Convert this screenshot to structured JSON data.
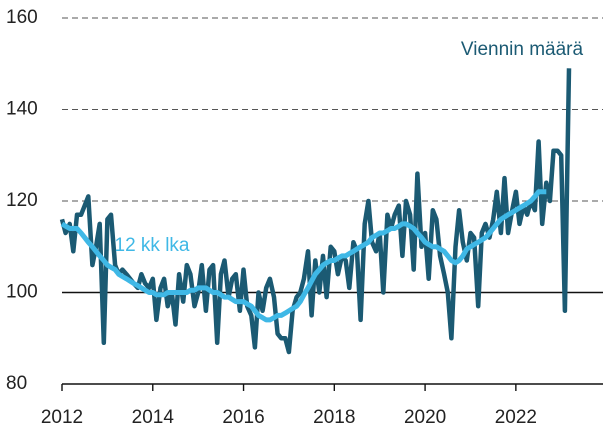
{
  "chart_data": {
    "type": "line",
    "x": [
      2012.0,
      2012.08,
      2012.17,
      2012.25,
      2012.33,
      2012.42,
      2012.5,
      2012.58,
      2012.67,
      2012.75,
      2012.83,
      2012.92,
      2013.0,
      2013.08,
      2013.17,
      2013.25,
      2013.33,
      2013.42,
      2013.5,
      2013.58,
      2013.67,
      2013.75,
      2013.83,
      2013.92,
      2014.0,
      2014.08,
      2014.17,
      2014.25,
      2014.33,
      2014.42,
      2014.5,
      2014.58,
      2014.67,
      2014.75,
      2014.83,
      2014.92,
      2015.0,
      2015.08,
      2015.17,
      2015.25,
      2015.33,
      2015.42,
      2015.5,
      2015.58,
      2015.67,
      2015.75,
      2015.83,
      2015.92,
      2016.0,
      2016.08,
      2016.17,
      2016.25,
      2016.33,
      2016.42,
      2016.5,
      2016.58,
      2016.67,
      2016.75,
      2016.83,
      2016.92,
      2017.0,
      2017.08,
      2017.17,
      2017.25,
      2017.33,
      2017.42,
      2017.5,
      2017.58,
      2017.67,
      2017.75,
      2017.83,
      2017.92,
      2018.0,
      2018.08,
      2018.17,
      2018.25,
      2018.33,
      2018.42,
      2018.5,
      2018.58,
      2018.67,
      2018.75,
      2018.83,
      2018.92,
      2019.0,
      2019.08,
      2019.17,
      2019.25,
      2019.33,
      2019.42,
      2019.5,
      2019.58,
      2019.67,
      2019.75,
      2019.83,
      2019.92,
      2020.0,
      2020.08,
      2020.17,
      2020.25,
      2020.33,
      2020.42,
      2020.5,
      2020.58,
      2020.67,
      2020.75,
      2020.83,
      2020.92,
      2021.0,
      2021.08,
      2021.17,
      2021.25,
      2021.33,
      2021.42,
      2021.5,
      2021.58,
      2021.67,
      2021.75,
      2021.83,
      2021.92,
      2022.0,
      2022.08,
      2022.17,
      2022.25,
      2022.33,
      2022.42,
      2022.5,
      2022.58,
      2022.67,
      2022.75,
      2022.83,
      2022.92,
      2023.0,
      2023.08,
      2023.17
    ],
    "series": [
      {
        "name": "Viennin määrä",
        "color": "#1b5a73",
        "width": 4.5,
        "values": [
          116,
          113,
          115,
          109,
          117,
          117,
          119,
          121,
          106,
          110,
          115,
          89,
          116,
          117,
          106,
          104,
          105,
          104,
          103,
          102,
          101,
          104,
          102,
          101,
          103,
          94,
          101,
          103,
          97,
          100,
          93,
          104,
          98,
          106,
          104,
          97,
          100,
          106,
          96,
          105,
          106,
          89,
          104,
          107,
          99,
          103,
          104,
          96,
          105,
          97,
          95,
          88,
          100,
          96,
          101,
          103,
          99,
          91,
          90,
          90,
          87,
          96,
          99,
          100,
          103,
          109,
          95,
          107,
          100,
          108,
          99,
          110,
          109,
          104,
          108,
          107,
          101,
          111,
          109,
          94,
          115,
          120,
          111,
          109,
          113,
          100,
          117,
          114,
          117,
          119,
          108,
          120,
          117,
          105,
          126,
          110,
          113,
          103,
          118,
          116,
          108,
          104,
          100,
          90,
          110,
          118,
          111,
          107,
          113,
          112,
          97,
          113,
          115,
          112,
          116,
          122,
          113,
          125,
          113,
          118,
          122,
          115,
          119,
          117,
          120,
          118,
          133,
          115,
          124,
          120,
          131,
          131,
          130,
          96,
          149
        ]
      },
      {
        "name": "12 kk lka",
        "color": "#3fb8e6",
        "width": 5,
        "values": [
          115,
          114.5,
          114,
          114,
          114,
          113,
          112,
          111,
          110,
          109,
          108,
          107,
          106,
          105.5,
          105,
          104,
          103.5,
          103,
          102.5,
          102,
          101.5,
          101,
          100.5,
          100,
          100,
          99.5,
          99.5,
          99.5,
          100,
          100,
          100,
          100,
          100,
          100,
          100.5,
          100.5,
          101,
          101,
          101,
          100.5,
          100,
          100,
          99.5,
          99,
          99,
          98.5,
          98,
          98,
          98,
          97.5,
          97,
          96,
          95,
          94.5,
          94,
          94,
          94.5,
          95,
          95,
          95.5,
          96,
          96.5,
          97,
          98,
          99.5,
          101,
          102.5,
          104,
          105,
          106,
          106.5,
          107,
          107,
          107.5,
          108,
          108,
          108.5,
          109,
          109.5,
          110,
          110.5,
          111,
          112,
          112.5,
          113,
          113,
          113.5,
          114,
          114,
          114.5,
          115,
          115,
          114.5,
          114,
          113,
          112,
          111,
          110.5,
          110,
          110,
          109.5,
          109,
          108,
          107,
          106.5,
          107,
          108,
          109.5,
          110,
          110.5,
          111,
          111.5,
          112,
          113,
          114,
          115,
          116,
          116.5,
          117,
          117.5,
          118,
          118.5,
          119,
          119.5,
          120,
          121,
          122,
          122,
          122,
          null,
          null,
          null,
          null,
          null,
          null
        ]
      }
    ],
    "xlim": [
      2012,
      2023.92
    ],
    "xticks": [
      2012,
      2014,
      2016,
      2018,
      2020,
      2022
    ],
    "ylim": [
      80,
      160
    ],
    "yticks": [
      80,
      100,
      120,
      140,
      160
    ],
    "grid": true,
    "hline": 100
  }
}
